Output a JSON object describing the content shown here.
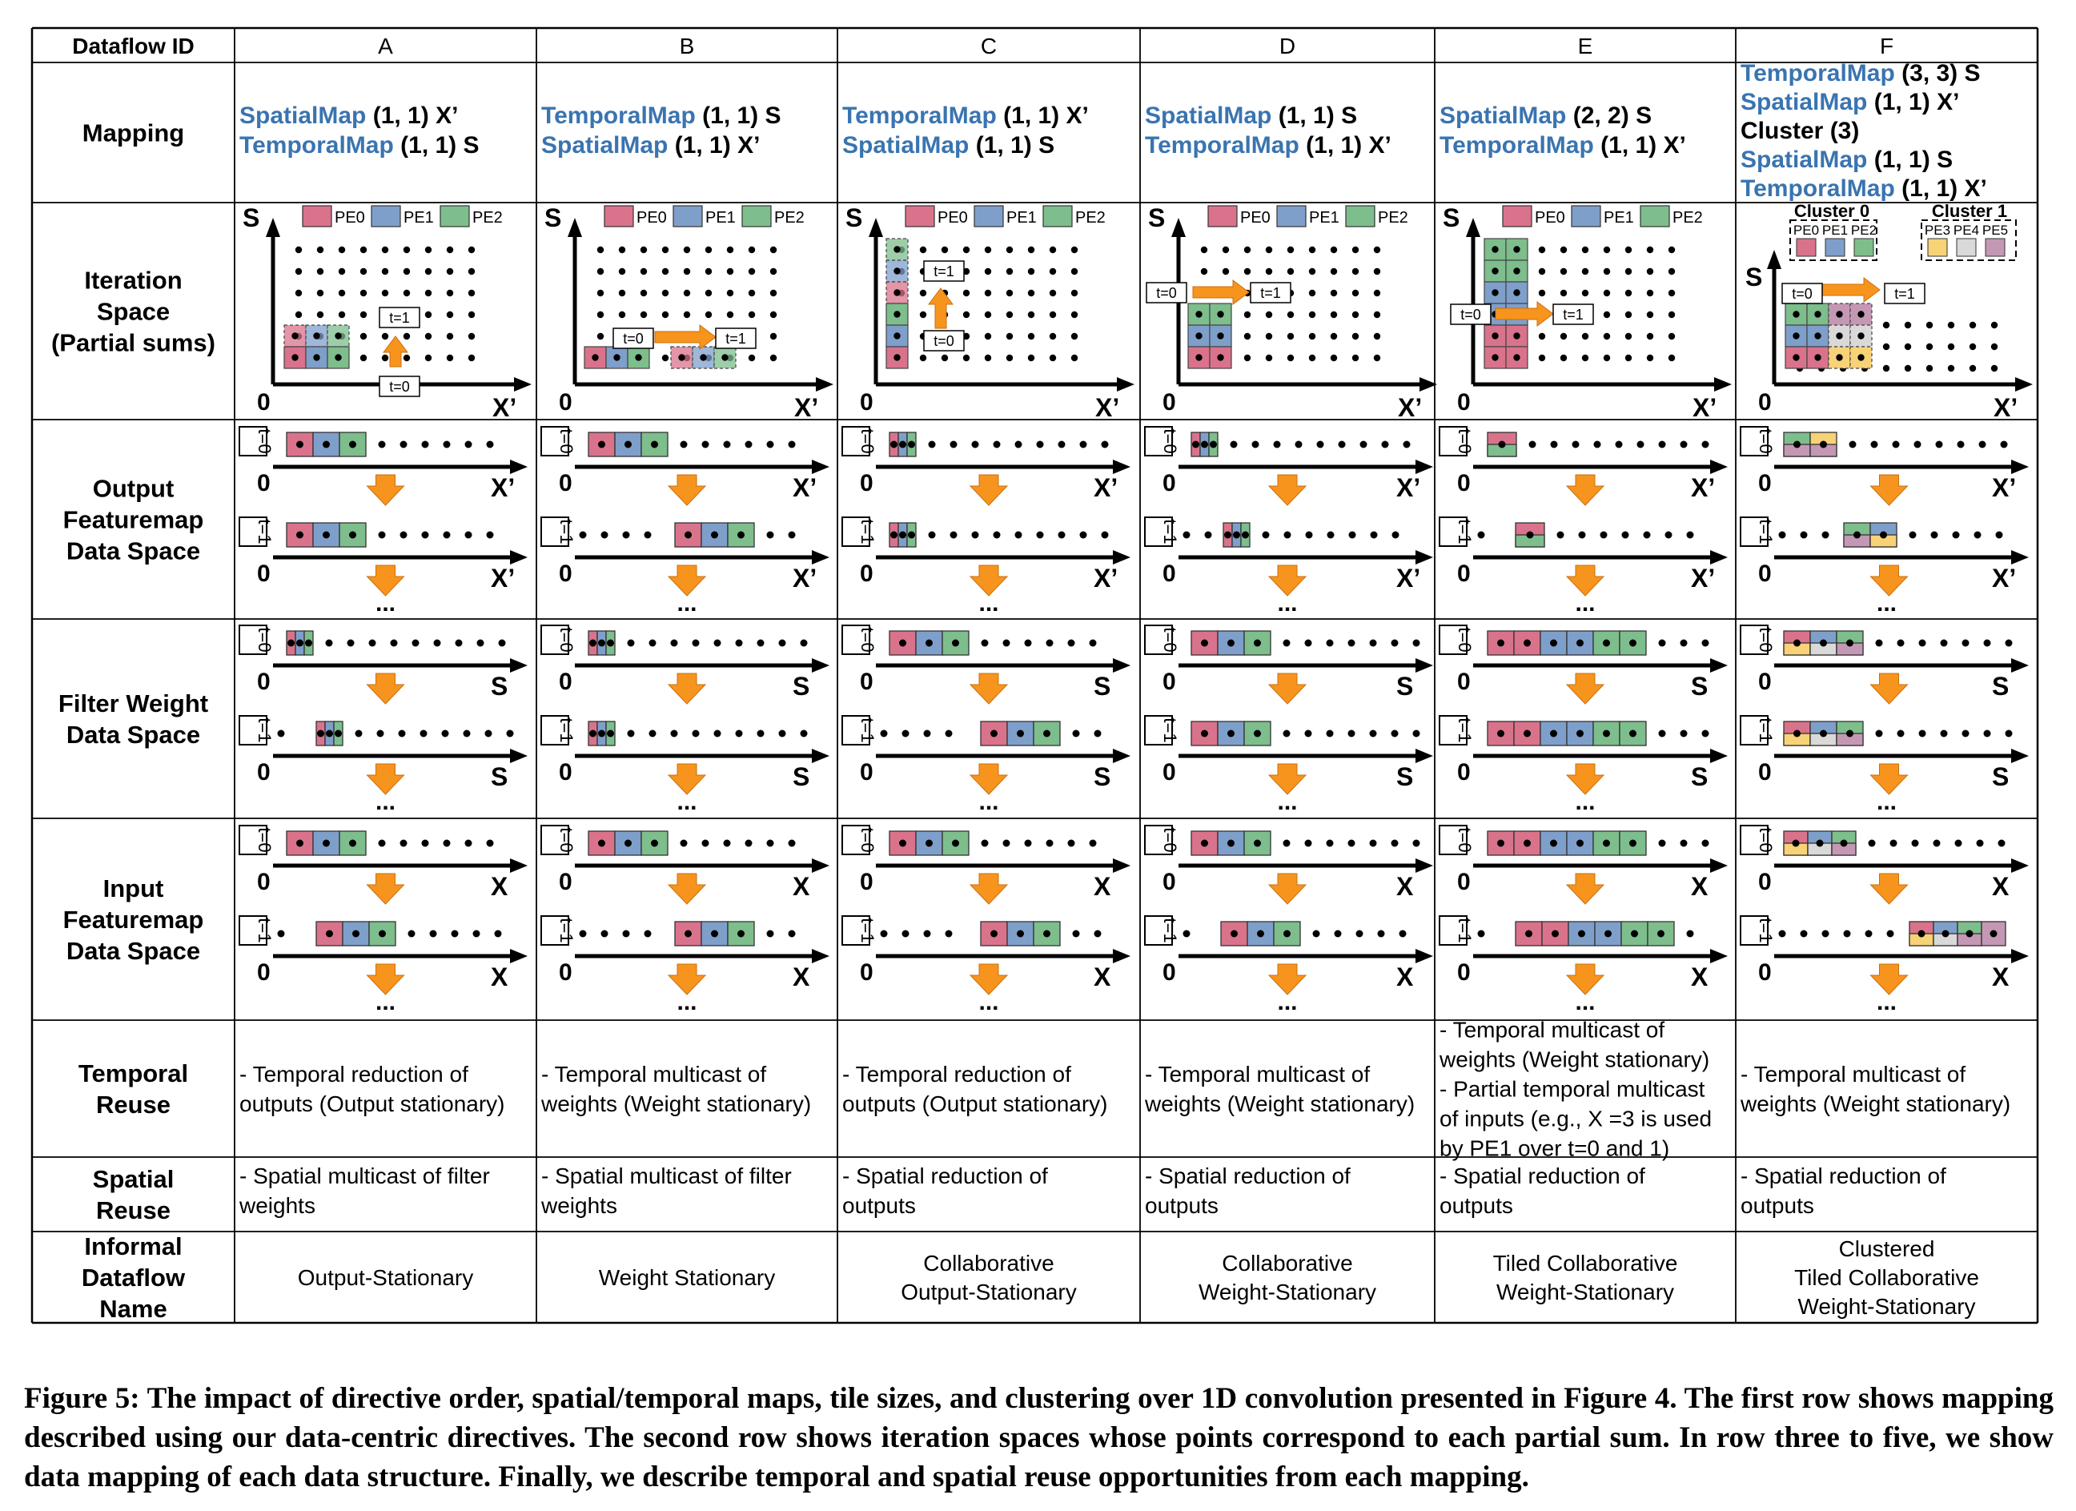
{
  "header_label": "Dataflow ID",
  "columns": [
    "A",
    "B",
    "C",
    "D",
    "E",
    "F"
  ],
  "row_labels": {
    "mapping": "Mapping",
    "iteration": [
      "Iteration",
      "Space",
      "(Partial sums)"
    ],
    "output": [
      "Output",
      "Featuremap",
      "Data Space"
    ],
    "filter": [
      "Filter Weight",
      "Data Space"
    ],
    "input": [
      "Input",
      "Featuremap",
      "Data Space"
    ],
    "temporal": [
      "Temporal",
      "Reuse"
    ],
    "spatial": [
      "Spatial",
      "Reuse"
    ],
    "informal": [
      "Informal",
      "Dataflow",
      "Name"
    ]
  },
  "mappings": [
    [
      [
        "SpatialMap",
        " (1, 1) X’"
      ],
      [
        "TemporalMap",
        " (1, 1) S"
      ]
    ],
    [
      [
        "TemporalMap",
        " (1, 1) S"
      ],
      [
        "SpatialMap",
        " (1, 1) X’"
      ]
    ],
    [
      [
        "TemporalMap",
        " (1, 1) X’"
      ],
      [
        "SpatialMap",
        " (1, 1) S"
      ]
    ],
    [
      [
        "SpatialMap",
        " (1, 1) S"
      ],
      [
        "TemporalMap",
        " (1, 1) X’"
      ]
    ],
    [
      [
        "SpatialMap",
        " (2, 2) S"
      ],
      [
        "TemporalMap",
        " (1, 1) X’"
      ]
    ],
    [
      [
        "TemporalMap",
        " (3, 3) S"
      ],
      [
        "SpatialMap",
        " (1, 1) X’"
      ],
      [
        "",
        "Cluster (3)"
      ],
      [
        "SpatialMap",
        " (1, 1) S"
      ],
      [
        "TemporalMap",
        " (1, 1) X’"
      ]
    ]
  ],
  "legend": [
    "PE0",
    "PE1",
    "PE2"
  ],
  "legend_f": [
    "PE0",
    "PE1",
    "PE2",
    "PE3",
    "PE4",
    "PE5"
  ],
  "clusters": [
    "Cluster 0",
    "Cluster 1"
  ],
  "axis": {
    "s": "S",
    "xp": "X’",
    "x": "X",
    "zero": "0",
    "ellipsis": "...",
    "t0": "t=0",
    "t1": "t=1"
  },
  "temporal_reuse": [
    [
      "- Temporal reduction of",
      "outputs (Output stationary)"
    ],
    [
      "- Temporal multicast of",
      "weights (Weight stationary)"
    ],
    [
      "- Temporal reduction of",
      "outputs (Output stationary)"
    ],
    [
      "- Temporal multicast of",
      "weights (Weight stationary)"
    ],
    [
      "- Temporal multicast of",
      "weights (Weight stationary)",
      "- Partial temporal multicast",
      "of inputs (e.g., X =3 is used",
      "by PE1 over t=0 and 1)"
    ],
    [
      "- Temporal multicast of",
      "weights (Weight stationary)"
    ]
  ],
  "spatial_reuse": [
    [
      "- Spatial multicast of filter",
      "weights"
    ],
    [
      "- Spatial multicast of filter",
      "weights"
    ],
    [
      "- Spatial reduction of",
      "outputs"
    ],
    [
      "- Spatial reduction of",
      "outputs"
    ],
    [
      "- Spatial reduction of",
      "outputs"
    ],
    [
      "- Spatial reduction of",
      "outputs"
    ]
  ],
  "informal_names": [
    [
      "Output-Stationary"
    ],
    [
      "Weight Stationary"
    ],
    [
      "Collaborative",
      "Output-Stationary"
    ],
    [
      "Collaborative",
      "Weight-Stationary"
    ],
    [
      "Tiled Collaborative",
      "Weight-Stationary"
    ],
    [
      "Clustered",
      "Tiled Collaborative",
      "Weight-Stationary"
    ]
  ],
  "colors": {
    "pe0": "#d9738b",
    "pe1": "#7f9fcb",
    "pe2": "#7dbe8c",
    "pe3": "#f7d276",
    "pe4": "#d9d9d9",
    "pe5": "#c498b4",
    "blue_text": "#3a74b0",
    "arrow": "#f7941d"
  },
  "caption": {
    "label": "Figure 5:",
    "text": " The impact of directive order, spatial/temporal maps, tile sizes, and clustering over 1D convolution presented in Figure 4. The first row shows mapping described using our data-centric directives. The second row shows iteration spaces whose points correspond to each partial sum. In row three to five, we show data mapping of each data structure. Finally, we describe temporal and spatial reuse opportunities from each mapping."
  }
}
